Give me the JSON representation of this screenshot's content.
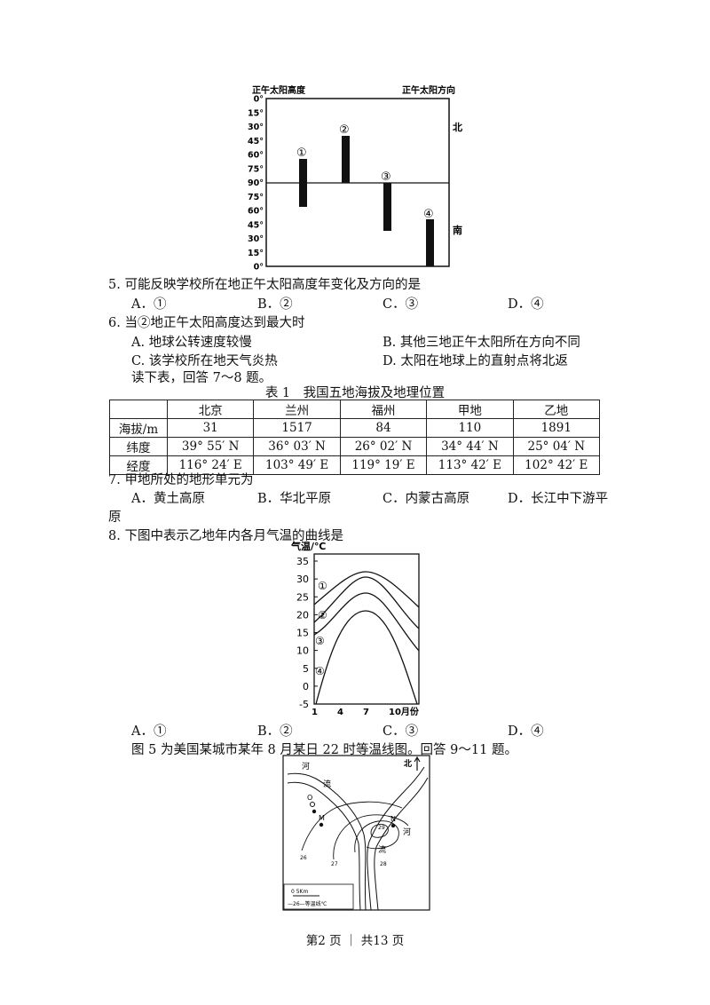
{
  "sun_chart": {
    "left_title": "正午太阳高度",
    "right_title": "正午太阳方向",
    "north_label": "北",
    "south_label": "南",
    "y_labels": [
      "0°",
      "15°",
      "30°",
      "45°",
      "60°",
      "75°",
      "90°",
      "75°",
      "60°",
      "45°",
      "30°",
      "15°",
      "0°"
    ],
    "bar_labels": [
      "①",
      "②",
      "③",
      "④"
    ]
  },
  "q5": {
    "text": "5. 可能反映学校所在地正午太阳高度年变化及方向的是",
    "options": [
      "A．①",
      "B．②",
      "C．③",
      "D．④"
    ]
  },
  "q6": {
    "text": "6. 当②地正午太阳高度达到最大时",
    "options": [
      "A. 地球公转速度较慢",
      "B. 其他三地正午太阳所在方向不同",
      "C. 该学校所在地天气炎热",
      "D. 太阳在地球上的直射点将北返"
    ]
  },
  "intro_7_8": "读下表，回答 7～8 题。",
  "table": {
    "caption": "表 1　我国五地海拔及地理位置",
    "headers": [
      "",
      "北京",
      "兰州",
      "福州",
      "甲地",
      "乙地"
    ],
    "rows": [
      [
        "海拔/m",
        "31",
        "1517",
        "84",
        "110",
        "1891"
      ],
      [
        "纬度",
        "39° 55′ N",
        "36° 03′ N",
        "26° 02′ N",
        "34° 44′ N",
        "25° 04′ N"
      ],
      [
        "经度",
        "116° 24′ E",
        "103° 49′ E",
        "119° 19′ E",
        "113° 42′ E",
        "102° 42′ E"
      ]
    ]
  },
  "q7": {
    "text": "7. 甲地所处的地形单元为",
    "options": [
      "A．黄土高原",
      "B．华北平原",
      "C．内蒙古高原",
      "D．长江中下游平"
    ],
    "wrap": "原"
  },
  "q8": {
    "text": "8. 下图中表示乙地年内各月气温的曲线是",
    "options": [
      "A．①",
      "B．②",
      "C．③",
      "D．④"
    ]
  },
  "temp_chart": {
    "ylabel": "气温/℃",
    "y_ticks": [
      "35",
      "30",
      "25",
      "20",
      "15",
      "10",
      "5",
      "0",
      "-5"
    ],
    "x_ticks": [
      "1",
      "4",
      "7",
      "10月份"
    ],
    "curve_labels": [
      "①",
      "②",
      "③",
      "④"
    ]
  },
  "intro_9_11": "图 5 为美国某城市某年 8 月某日 22 时等温线图。回答 9～11 题。",
  "map": {
    "north": "北",
    "river1": "河",
    "river2": "流",
    "river3": "河",
    "river4": "流",
    "point_o": "O",
    "point_m": "M",
    "point_n": "N",
    "iso_labels": [
      "26",
      "27",
      "28",
      "29"
    ],
    "scale": "0    5Km",
    "legend": "—26—等温线℃"
  },
  "footer": "第2 页 ｜ 共13 页"
}
